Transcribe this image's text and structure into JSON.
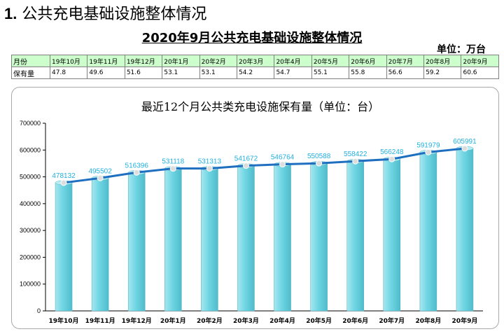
{
  "heading": {
    "number": "1.",
    "text": "公共充电基础设施整体情况"
  },
  "subtitle": "2020年9月公共充电基础设施整体情况",
  "unit_label": "单位：万台",
  "table": {
    "row1_label": "月份",
    "row2_label": "保有量",
    "months": [
      "19年10月",
      "19年11月",
      "19年12月",
      "20年1月",
      "20年2月",
      "20年3月",
      "20年4月",
      "20年5月",
      "20年6月",
      "20年7月",
      "20年8月",
      "20年9月"
    ],
    "values": [
      "47.8",
      "49.6",
      "51.6",
      "53.1",
      "53.1",
      "54.2",
      "54.7",
      "55.1",
      "55.8",
      "56.6",
      "59.2",
      "60.6"
    ]
  },
  "colors": {
    "bar_fill": "#6fd5e3",
    "line": "#1f6fc0",
    "data_label": "#22b0e0"
  },
  "chart_data": {
    "type": "bar",
    "title": "最近12个月公共类充电设施保有量（单位：台）",
    "categories": [
      "19年10月",
      "19年11月",
      "19年12月",
      "20年1月",
      "20年2月",
      "20年3月",
      "20年4月",
      "20年5月",
      "20年6月",
      "20年7月",
      "20年8月",
      "20年9月"
    ],
    "series": [
      {
        "type": "bar",
        "values": [
          478132,
          495502,
          516396,
          531118,
          531313,
          541672,
          546764,
          550588,
          558422,
          566248,
          591979,
          605991
        ]
      },
      {
        "type": "line",
        "values": [
          478132,
          495502,
          516396,
          531118,
          531313,
          541672,
          546764,
          550588,
          558422,
          566248,
          591979,
          605991
        ]
      }
    ],
    "ylim": [
      0,
      700000
    ],
    "yticks": [
      0,
      100000,
      200000,
      300000,
      400000,
      500000,
      600000,
      700000
    ],
    "grid": false,
    "legend": "none"
  }
}
